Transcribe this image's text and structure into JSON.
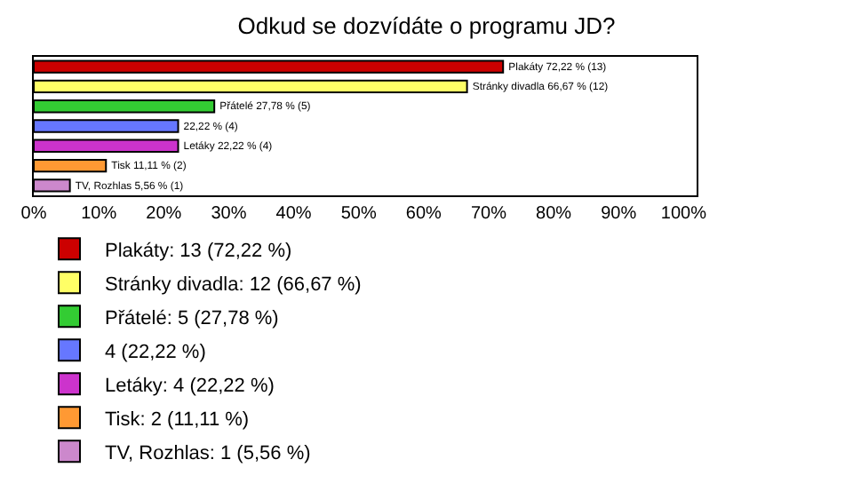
{
  "chart_data": {
    "type": "bar",
    "orientation": "horizontal",
    "stacked": true,
    "title": "Odkud se dozvídáte o programu JD?",
    "categories": [
      null,
      null,
      null,
      null,
      null,
      null,
      null
    ],
    "series": [
      {
        "name": "Plakáty: 13 (72,22 %)",
        "color": "#cc0000",
        "values": [
          72.22,
          null,
          null,
          null,
          null,
          null,
          null
        ],
        "value_labels": [
          "Plakáty 72,22 % (13)",
          null,
          null,
          null,
          null,
          null,
          null
        ]
      },
      {
        "name": "Stránky divadla: 12 (66,67 %)",
        "color": "#ffff66",
        "values": [
          null,
          66.67,
          null,
          null,
          null,
          null,
          null
        ],
        "value_labels": [
          null,
          "Stránky divadla 66,67 % (12)",
          null,
          null,
          null,
          null,
          null
        ]
      },
      {
        "name": "Přátelé: 5 (27,78 %)",
        "color": "#33cc33",
        "values": [
          null,
          null,
          27.78,
          null,
          null,
          null,
          null
        ],
        "value_labels": [
          null,
          null,
          "Přátelé 27,78 % (5)",
          null,
          null,
          null,
          null
        ]
      },
      {
        "name": "4 (22,22 %)",
        "color": "#6677ff",
        "values": [
          null,
          null,
          null,
          22.22,
          null,
          null,
          null
        ],
        "value_labels": [
          null,
          null,
          null,
          "22,22 % (4)",
          null,
          null,
          null
        ]
      },
      {
        "name": "Letáky: 4 (22,22 %)",
        "color": "#cc33cc",
        "values": [
          null,
          null,
          null,
          null,
          22.22,
          null,
          null
        ],
        "value_labels": [
          null,
          null,
          null,
          null,
          "Letáky 22,22 % (4)",
          null,
          null
        ]
      },
      {
        "name": "Tisk: 2 (11,11 %)",
        "color": "#ff9933",
        "values": [
          null,
          null,
          null,
          null,
          null,
          11.11,
          null
        ],
        "value_labels": [
          null,
          null,
          null,
          null,
          null,
          "Tisk 11,11 % (2)",
          null
        ]
      },
      {
        "name": "TV, Rozhlas: 1 (5,56 %)",
        "color": "#cc88cc",
        "values": [
          null,
          null,
          null,
          null,
          null,
          null,
          5.56
        ],
        "value_labels": [
          null,
          null,
          null,
          null,
          null,
          null,
          "TV, Rozhlas 5,56 % (1)"
        ]
      }
    ],
    "xlim": [
      0,
      102
    ],
    "xticks": [
      {
        "value": 0,
        "label": "0%"
      },
      {
        "value": 10,
        "label": "10%"
      },
      {
        "value": 20,
        "label": "20%"
      },
      {
        "value": 30,
        "label": "30%"
      },
      {
        "value": 40,
        "label": "40%"
      },
      {
        "value": 50,
        "label": "50%"
      },
      {
        "value": 60,
        "label": "60%"
      },
      {
        "value": 70,
        "label": "70%"
      },
      {
        "value": 80,
        "label": "80%"
      },
      {
        "value": 90,
        "label": "90%"
      },
      {
        "value": 100,
        "label": "100%"
      }
    ],
    "legend": "bottom"
  }
}
